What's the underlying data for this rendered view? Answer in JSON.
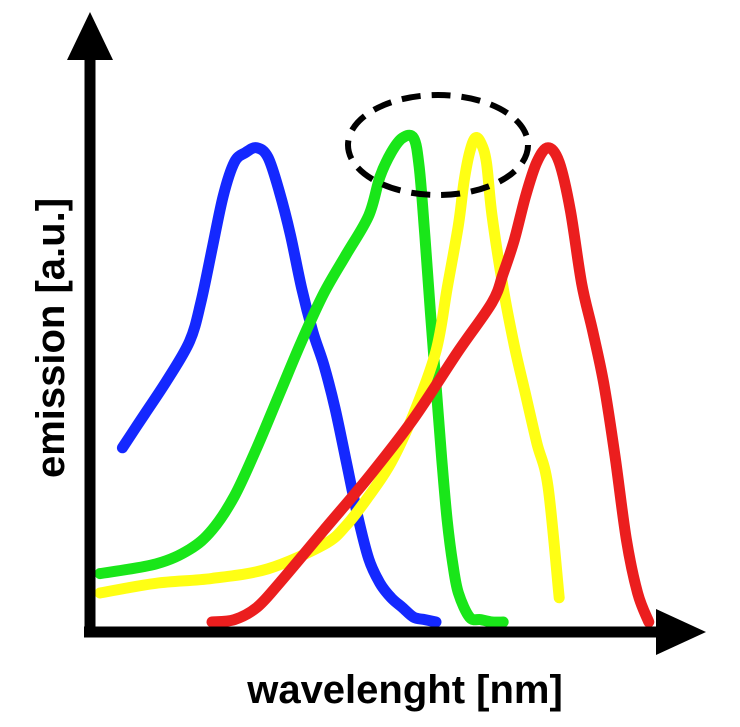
{
  "chart_data": {
    "type": "line",
    "xlabel": "wavelenght [nm]",
    "ylabel": "emission [a.u.]",
    "xlim": [
      0,
      100
    ],
    "ylim": [
      0,
      100
    ],
    "grid": false,
    "legend": "none",
    "annotation": {
      "shape": "dashed-ellipse",
      "highlights": "green and yellow peaks"
    },
    "series": [
      {
        "color": "#1428ff",
        "x": [
          4,
          8,
          12,
          16,
          18,
          20,
          22,
          24,
          26,
          28,
          30,
          32,
          34,
          36,
          38,
          40,
          42,
          44,
          46,
          48,
          50,
          52,
          54,
          56,
          58,
          60
        ],
        "y": [
          36,
          43,
          50,
          58,
          66,
          77,
          88,
          95,
          97,
          98,
          96,
          89,
          80,
          69,
          60,
          53,
          44,
          33,
          22,
          13,
          8,
          5,
          3,
          1,
          0.5,
          0
        ]
      },
      {
        "color": "#19e619",
        "x": [
          0,
          10,
          16,
          20,
          24,
          28,
          32,
          36,
          40,
          44,
          48,
          50,
          52,
          54,
          56,
          57,
          58,
          59,
          60,
          61,
          62,
          63,
          64,
          66,
          68,
          70,
          72
        ],
        "y": [
          10,
          12,
          15,
          19,
          26,
          36,
          47,
          58,
          68,
          76,
          84,
          92,
          97,
          100,
          100,
          94,
          80,
          64,
          49,
          34,
          21,
          12,
          6,
          1,
          0.5,
          0,
          0
        ]
      },
      {
        "color": "#ffff14",
        "x": [
          0,
          10,
          20,
          30,
          40,
          44,
          48,
          52,
          56,
          60,
          62,
          64,
          65,
          66,
          67,
          68,
          69,
          70,
          72,
          74,
          76,
          78,
          80,
          82
        ],
        "y": [
          6,
          8,
          9,
          11,
          16,
          20,
          26,
          33,
          43,
          56,
          69,
          82,
          91,
          97,
          100,
          99,
          95,
          84,
          69,
          57,
          47,
          37,
          28,
          5
        ]
      },
      {
        "color": "#eb1e1e",
        "x": [
          20,
          24,
          28,
          32,
          40,
          48,
          56,
          64,
          70,
          72,
          74,
          76,
          78,
          80,
          82,
          84,
          86,
          88,
          90,
          92,
          94,
          96,
          98
        ],
        "y": [
          0,
          0.5,
          3,
          8,
          19,
          30,
          42,
          56,
          66,
          72,
          79,
          88,
          95,
          98,
          95,
          85,
          70,
          60,
          49,
          34,
          17,
          6,
          0
        ]
      }
    ]
  }
}
